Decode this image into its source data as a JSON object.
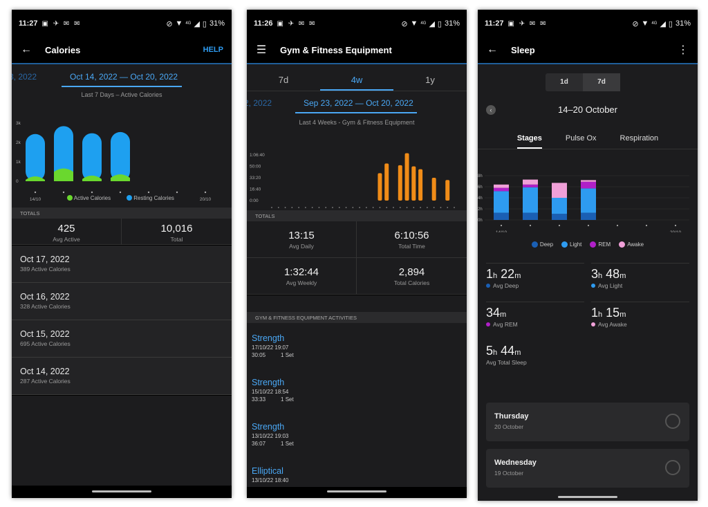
{
  "status": {
    "p1_time": "11:27",
    "p2_time": "11:26",
    "p3_time": "11:27",
    "battery": "31%",
    "p1_net": "4G",
    "p2_net": "4G",
    "p3_net": "4G"
  },
  "calories": {
    "title": "Calories",
    "help": "HELP",
    "prev_range": "3, 2022",
    "range": "Oct 14, 2022 — Oct 20, 2022",
    "subtitle": "Last 7 Days – Active Calories",
    "y_ticks": [
      "3k",
      "2k",
      "1k",
      "0"
    ],
    "x_start": "14/10",
    "x_end": "20/10",
    "legend_active": "Active Calories",
    "legend_resting": "Resting Calories",
    "totals_header": "TOTALS",
    "avg_active_value": "425",
    "avg_active_label": "Avg Active",
    "total_value": "10,016",
    "total_label": "Total",
    "days": [
      {
        "date": "Oct 17, 2022",
        "sub": "389 Active Calories"
      },
      {
        "date": "Oct 16, 2022",
        "sub": "328 Active Calories"
      },
      {
        "date": "Oct 15, 2022",
        "sub": "695 Active Calories"
      },
      {
        "date": "Oct 14, 2022",
        "sub": "287 Active Calories"
      }
    ]
  },
  "gym": {
    "title": "Gym & Fitness Equipment",
    "tabs": [
      "7d",
      "4w",
      "1y"
    ],
    "active_tab": "4w",
    "prev_range": "2, 2022",
    "range": "Sep 23, 2022 — Oct 20, 2022",
    "subtitle": "Last 4 Weeks - Gym & Fitness Equipment",
    "y_ticks": [
      "1:06:40",
      "50:00",
      "33:20",
      "16:40",
      "0:00"
    ],
    "x_start": "23/09",
    "x_end": "20/10",
    "totals_header": "TOTALS",
    "totals": [
      {
        "value": "13:15",
        "label": "Avg Daily"
      },
      {
        "value": "6:10:56",
        "label": "Total Time"
      },
      {
        "value": "1:32:44",
        "label": "Avg Weekly"
      },
      {
        "value": "2,894",
        "label": "Total Calories"
      }
    ],
    "activities_header": "GYM & FITNESS EQUIPMENT ACTIVITIES",
    "activities": [
      {
        "name": "Strength",
        "datetime": "17/10/22 19:07",
        "duration": "30:05",
        "sets": "1 Set"
      },
      {
        "name": "Strength",
        "datetime": "15/10/22 18:54",
        "duration": "33:33",
        "sets": "1 Set"
      },
      {
        "name": "Strength",
        "datetime": "13/10/22 19:03",
        "duration": "36:07",
        "sets": "1 Set"
      },
      {
        "name": "Elliptical",
        "datetime": "13/10/22 18:40",
        "duration": "",
        "sets": ""
      }
    ]
  },
  "sleep": {
    "title": "Sleep",
    "seg": [
      "1d",
      "7d"
    ],
    "range": "14–20 October",
    "tabs": [
      "Stages",
      "Pulse Ox",
      "Respiration"
    ],
    "y_ticks": [
      "8h",
      "6h",
      "4h",
      "2h",
      "0h"
    ],
    "x_start": "14/10",
    "x_end": "20/10",
    "legend": [
      "Deep",
      "Light",
      "REM",
      "Awake"
    ],
    "stats": [
      {
        "num1": "1",
        "u1": "h",
        "num2": "22",
        "u2": "m",
        "label": "Avg Deep",
        "color": "#1a5fb4"
      },
      {
        "num1": "3",
        "u1": "h",
        "num2": "48",
        "u2": "m",
        "label": "Avg Light",
        "color": "#2e9bf0"
      },
      {
        "num1": "34",
        "u1": "m",
        "num2": "",
        "u2": "",
        "label": "Avg REM",
        "color": "#b020c8"
      },
      {
        "num1": "1",
        "u1": "h",
        "num2": "15",
        "u2": "m",
        "label": "Avg Awake",
        "color": "#f0a0d8"
      },
      {
        "num1": "5",
        "u1": "h",
        "num2": "44",
        "u2": "m",
        "label": "Avg Total Sleep",
        "color": ""
      }
    ],
    "cards": [
      {
        "day": "Thursday",
        "date": "20 October"
      },
      {
        "day": "Wednesday",
        "date": "19 October"
      }
    ]
  },
  "chart_data": [
    {
      "type": "bar",
      "categories": [
        "14/10",
        "15/10",
        "16/10",
        "17/10",
        "18/10",
        "19/10",
        "20/10"
      ],
      "series": [
        {
          "name": "Active Calories",
          "values": [
            287,
            695,
            328,
            389,
            0,
            0,
            0
          ]
        },
        {
          "name": "Resting Calories",
          "values": [
            2150,
            2150,
            2150,
            2150,
            0,
            0,
            0
          ]
        }
      ],
      "ylim": [
        0,
        3000
      ],
      "colors": {
        "Active Calories": "#6ad82e",
        "Resting Calories": "#1ea0f0"
      }
    },
    {
      "type": "bar",
      "categories": [
        "23/09",
        "24/09",
        "25/09",
        "26/09",
        "27/09",
        "28/09",
        "29/09",
        "30/09",
        "01/10",
        "02/10",
        "03/10",
        "04/10",
        "05/10",
        "06/10",
        "07/10",
        "08/10",
        "09/10",
        "10/10",
        "11/10",
        "12/10",
        "13/10",
        "14/10",
        "15/10",
        "16/10",
        "17/10",
        "18/10",
        "19/10",
        "20/10"
      ],
      "values": [
        0,
        0,
        0,
        0,
        0,
        0,
        0,
        0,
        0,
        0,
        0,
        0,
        0,
        0,
        0,
        0,
        2400,
        3250,
        0,
        3100,
        4150,
        3000,
        2750,
        0,
        2000,
        0,
        1800,
        0
      ],
      "ylim": [
        0,
        4000
      ],
      "unit": "seconds",
      "color": "#f08c18"
    },
    {
      "type": "bar",
      "categories": [
        "14/10",
        "15/10",
        "16/10",
        "17/10",
        "18/10",
        "19/10",
        "20/10"
      ],
      "series": [
        {
          "name": "Deep",
          "values": [
            1.3,
            1.3,
            1.1,
            1.3,
            0,
            0,
            0
          ]
        },
        {
          "name": "Light",
          "values": [
            3.9,
            4.6,
            2.9,
            4.4,
            0,
            0,
            0
          ]
        },
        {
          "name": "REM",
          "values": [
            0.6,
            0.5,
            0,
            1.2,
            0,
            0,
            0
          ]
        },
        {
          "name": "Awake",
          "values": [
            0.6,
            0.9,
            2.7,
            0.3,
            0,
            0,
            0
          ]
        }
      ],
      "ylim": [
        0,
        8
      ],
      "colors": {
        "Deep": "#1a5fb4",
        "Light": "#2e9bf0",
        "REM": "#b020c8",
        "Awake": "#f0a0d8"
      }
    }
  ]
}
